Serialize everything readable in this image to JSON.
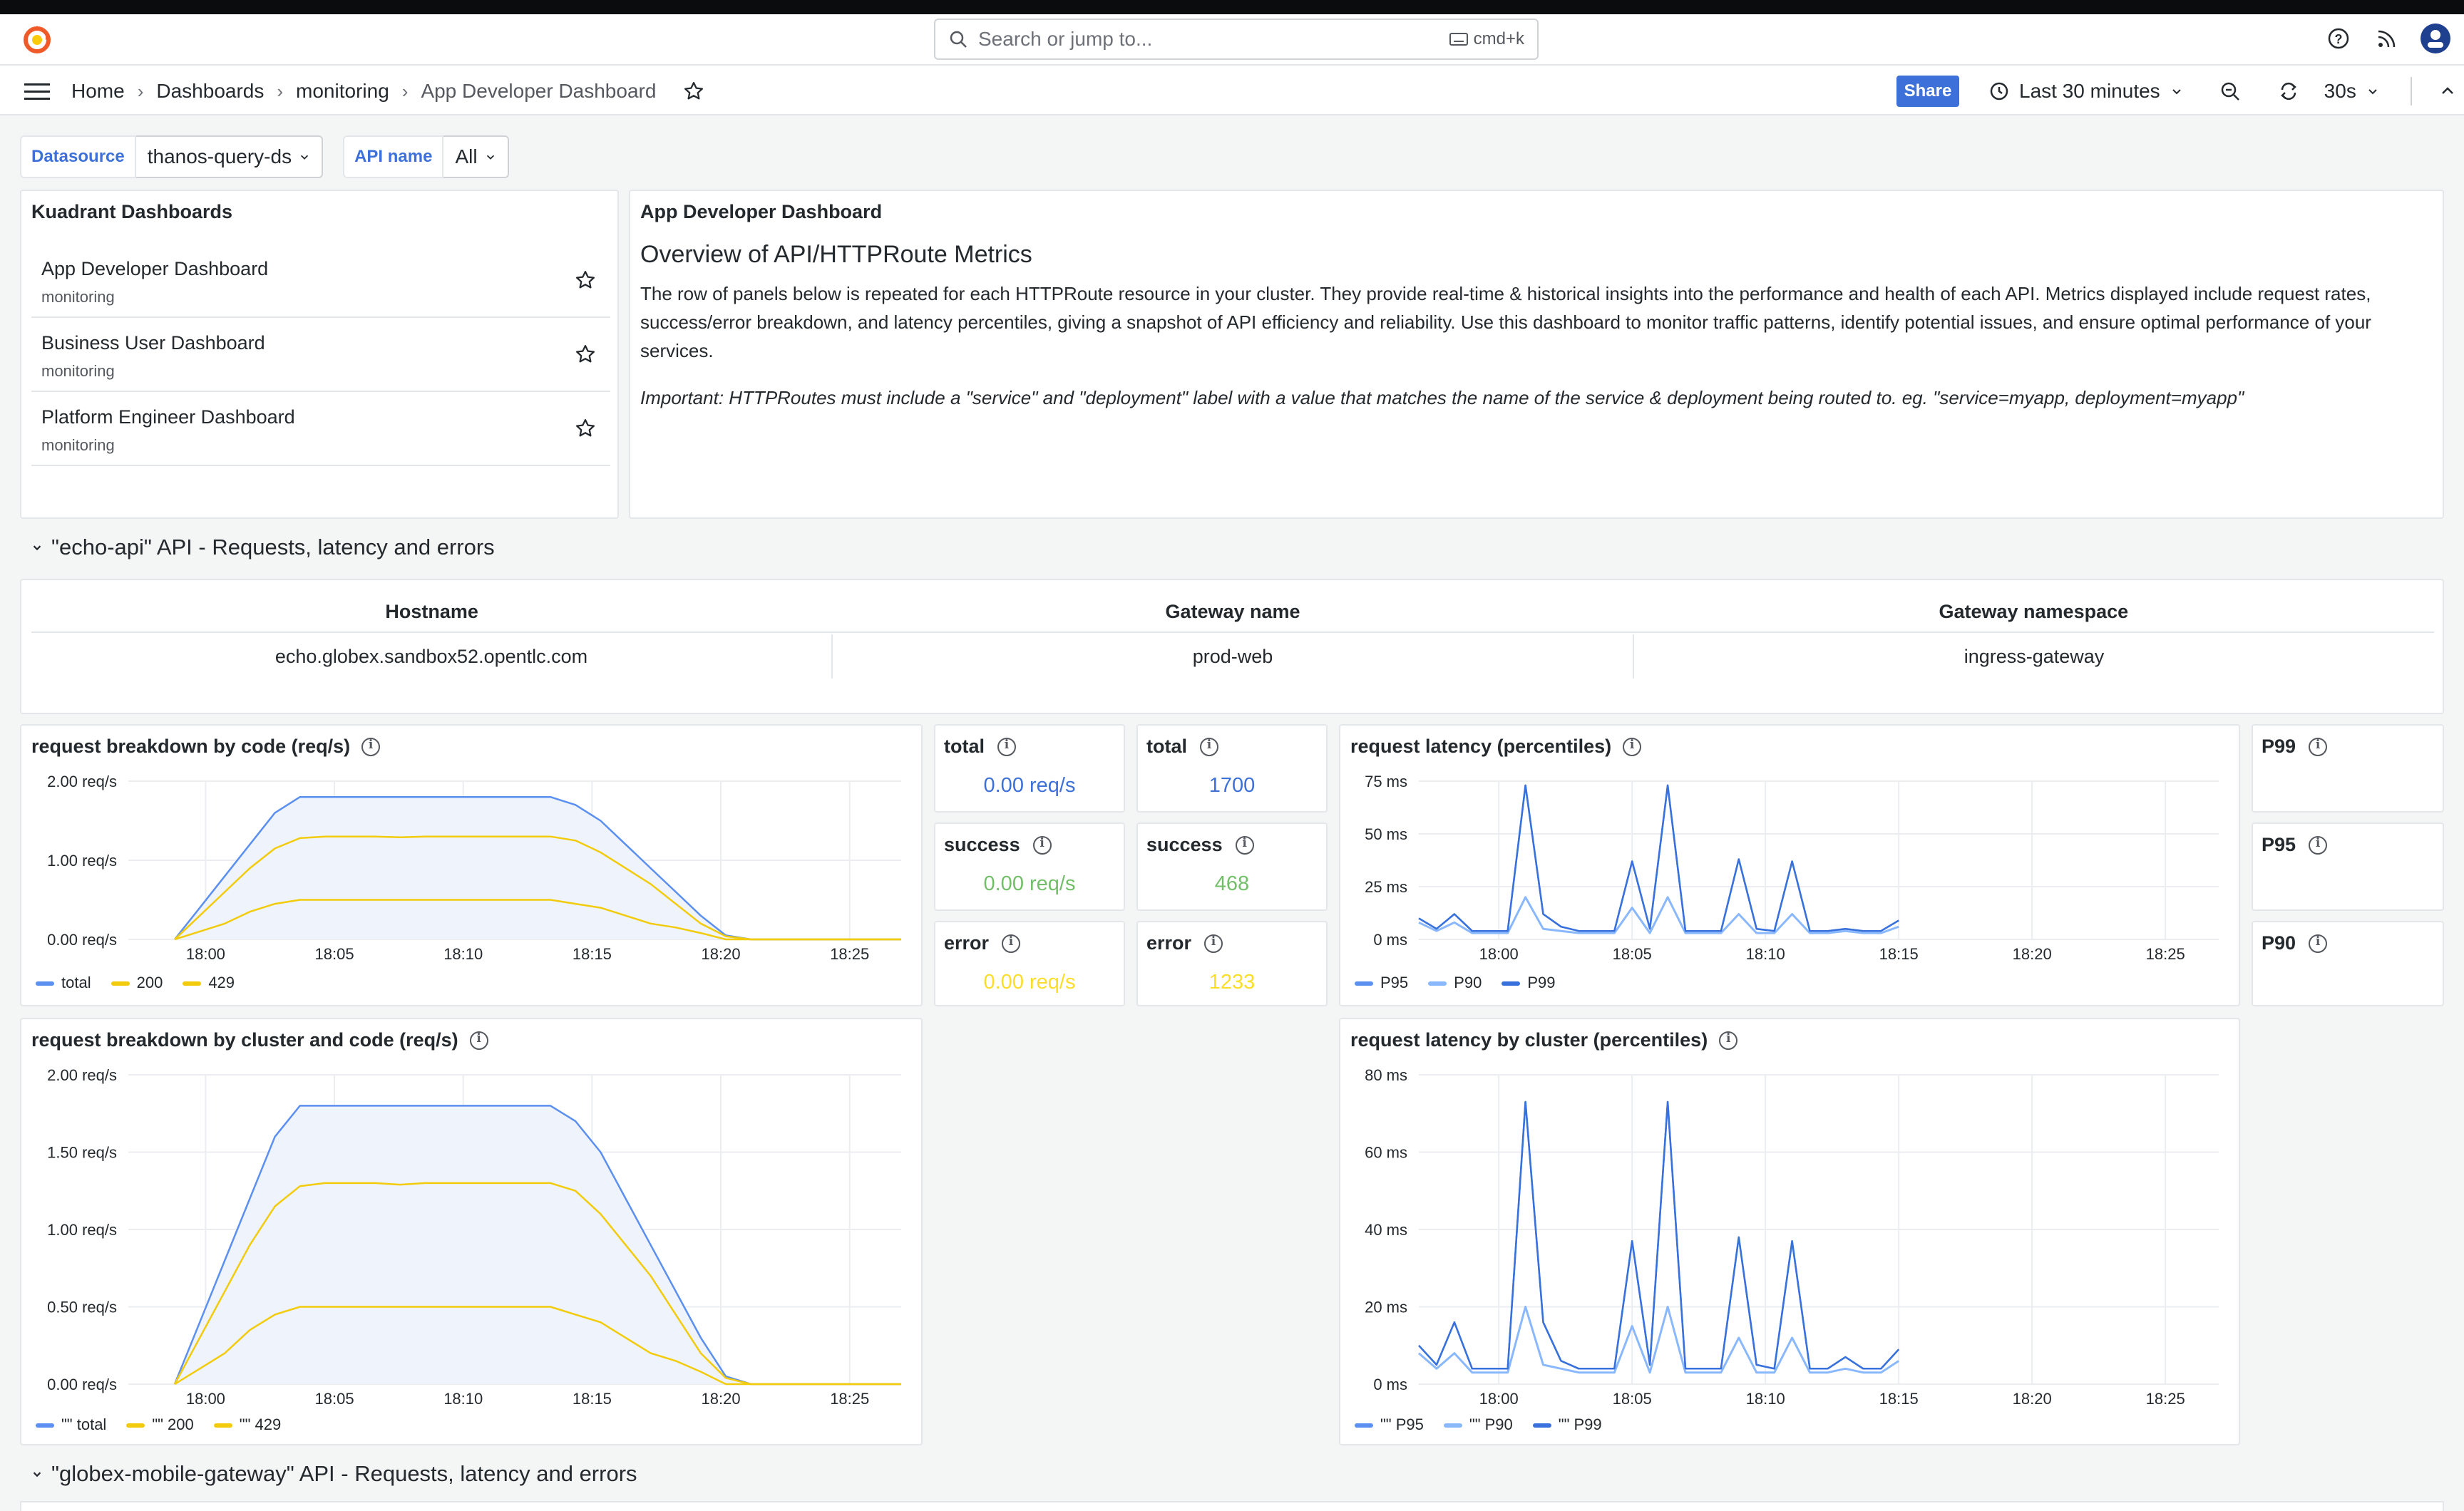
{
  "topbar": {
    "search_placeholder": "Search or jump to...",
    "search_shortcut": "cmd+k"
  },
  "breadcrumb": {
    "items": [
      "Home",
      "Dashboards",
      "monitoring"
    ],
    "current": "App Developer Dashboard"
  },
  "toolbar": {
    "share_label": "Share",
    "time_range": "Last 30 minutes",
    "refresh_interval": "30s"
  },
  "variables": [
    {
      "label": "Datasource",
      "value": "thanos-query-ds"
    },
    {
      "label": "API name",
      "value": "All"
    }
  ],
  "dashlist": {
    "title": "Kuadrant Dashboards",
    "items": [
      {
        "title": "App Developer Dashboard",
        "folder": "monitoring"
      },
      {
        "title": "Business User Dashboard",
        "folder": "monitoring"
      },
      {
        "title": "Platform Engineer Dashboard",
        "folder": "monitoring"
      }
    ]
  },
  "textpanel": {
    "title": "App Developer Dashboard",
    "heading": "Overview of API/HTTPRoute Metrics",
    "body": "The row of panels below is repeated for each HTTPRoute resource in your cluster. They provide real-time & historical insights into the performance and health of each API. Metrics displayed include request rates, success/error breakdown, and latency percentiles, giving a snapshot of API efficiency and reliability. Use this dashboard to monitor traffic patterns, identify potential issues, and ensure optimal performance of your services.",
    "note": "Important: HTTPRoutes must include a \"service\" and \"deployment\" label with a value that matches the name of the service & deployment being routed to. eg. \"service=myapp, deployment=myapp\""
  },
  "rows": [
    {
      "title": "\"echo-api\" API - Requests, latency and errors"
    },
    {
      "title": "\"globex-mobile-gateway\" API - Requests, latency and errors"
    }
  ],
  "infotable": {
    "headers": [
      "Hostname",
      "Gateway name",
      "Gateway namespace"
    ],
    "values": [
      "echo.globex.sandbox52.opentlc.com",
      "prod-web",
      "ingress-gateway"
    ]
  },
  "stats_rate": [
    {
      "label": "total",
      "value": "0.00 req/s",
      "color": "#3d71d9"
    },
    {
      "label": "success",
      "value": "0.00 req/s",
      "color": "#73bf69"
    },
    {
      "label": "error",
      "value": "0.00 req/s",
      "color": "#fade2a"
    }
  ],
  "stats_count": [
    {
      "label": "total",
      "value": "1700",
      "color": "#3d71d9"
    },
    {
      "label": "success",
      "value": "468",
      "color": "#73bf69"
    },
    {
      "label": "error",
      "value": "1233",
      "color": "#fade2a"
    }
  ],
  "pstats": [
    "P99",
    "P95",
    "P90"
  ],
  "colors": {
    "blue": "#5b8ff0",
    "yellow": "#f2cc0c",
    "lightblue": "#8ab8ff",
    "darkblue": "#3871dc"
  },
  "chart_data": [
    {
      "type": "line",
      "title": "request breakdown by code (req/s)",
      "x_ticks": [
        "18:00",
        "18:05",
        "18:10",
        "18:15",
        "18:20",
        "18:25"
      ],
      "y_ticks": [
        "0.00 req/s",
        "1.00 req/s",
        "2.00 req/s"
      ],
      "ylim": [
        0,
        2
      ],
      "series": [
        {
          "name": "total",
          "values": [
            0,
            0.4,
            0.8,
            1.2,
            1.6,
            1.8,
            1.8,
            1.8,
            1.8,
            1.8,
            1.8,
            1.8,
            1.8,
            1.8,
            1.8,
            1.8,
            1.7,
            1.5,
            1.2,
            0.9,
            0.6,
            0.3,
            0.05,
            0,
            0,
            0,
            0,
            0,
            0,
            0
          ]
        },
        {
          "name": "200",
          "values": [
            0,
            0.1,
            0.2,
            0.35,
            0.45,
            0.5,
            0.5,
            0.5,
            0.5,
            0.5,
            0.5,
            0.5,
            0.5,
            0.5,
            0.5,
            0.5,
            0.45,
            0.4,
            0.3,
            0.2,
            0.15,
            0.08,
            0,
            0,
            0,
            0,
            0,
            0,
            0,
            0
          ]
        },
        {
          "name": "429",
          "values": [
            0,
            0.3,
            0.6,
            0.9,
            1.15,
            1.28,
            1.3,
            1.3,
            1.3,
            1.29,
            1.3,
            1.3,
            1.3,
            1.3,
            1.3,
            1.3,
            1.25,
            1.1,
            0.9,
            0.7,
            0.45,
            0.2,
            0.04,
            0,
            0,
            0,
            0,
            0,
            0,
            0
          ]
        }
      ]
    },
    {
      "type": "line",
      "title": "request breakdown by cluster and code (req/s)",
      "x_ticks": [
        "18:00",
        "18:05",
        "18:10",
        "18:15",
        "18:20",
        "18:25"
      ],
      "y_ticks": [
        "0.00 req/s",
        "0.50 req/s",
        "1.00 req/s",
        "1.50 req/s",
        "2.00 req/s"
      ],
      "ylim": [
        0,
        2
      ],
      "series": [
        {
          "name": "\"\" total",
          "values": [
            0,
            0.4,
            0.8,
            1.2,
            1.6,
            1.8,
            1.8,
            1.8,
            1.8,
            1.8,
            1.8,
            1.8,
            1.8,
            1.8,
            1.8,
            1.8,
            1.7,
            1.5,
            1.2,
            0.9,
            0.6,
            0.3,
            0.05,
            0,
            0,
            0,
            0,
            0,
            0,
            0
          ]
        },
        {
          "name": "\"\" 200",
          "values": [
            0,
            0.1,
            0.2,
            0.35,
            0.45,
            0.5,
            0.5,
            0.5,
            0.5,
            0.5,
            0.5,
            0.5,
            0.5,
            0.5,
            0.5,
            0.5,
            0.45,
            0.4,
            0.3,
            0.2,
            0.15,
            0.08,
            0,
            0,
            0,
            0,
            0,
            0,
            0,
            0
          ]
        },
        {
          "name": "\"\" 429",
          "values": [
            0,
            0.3,
            0.6,
            0.9,
            1.15,
            1.28,
            1.3,
            1.3,
            1.3,
            1.29,
            1.3,
            1.3,
            1.3,
            1.3,
            1.3,
            1.3,
            1.25,
            1.1,
            0.9,
            0.7,
            0.45,
            0.2,
            0.04,
            0,
            0,
            0,
            0,
            0,
            0,
            0
          ]
        }
      ]
    },
    {
      "type": "line",
      "title": "request latency (percentiles)",
      "x_ticks": [
        "18:00",
        "18:05",
        "18:10",
        "18:15",
        "18:20",
        "18:25"
      ],
      "y_ticks": [
        "0 ms",
        "25 ms",
        "50 ms",
        "75 ms"
      ],
      "ylim": [
        0,
        75
      ],
      "series": [
        {
          "name": "P95",
          "values": [
            10,
            5,
            12,
            4,
            4,
            4,
            73,
            12,
            6,
            4,
            4,
            4,
            37,
            5,
            73,
            4,
            4,
            4,
            38,
            5,
            4,
            37,
            4,
            4,
            5,
            4,
            4,
            9
          ]
        },
        {
          "name": "P90",
          "values": [
            8,
            4,
            8,
            3,
            3,
            3,
            20,
            5,
            4,
            3,
            3,
            3,
            15,
            3,
            20,
            3,
            3,
            3,
            12,
            3,
            3,
            12,
            3,
            3,
            4,
            3,
            3,
            6
          ]
        },
        {
          "name": "P99",
          "values": [
            10,
            5,
            12,
            4,
            4,
            4,
            73,
            12,
            6,
            4,
            4,
            4,
            37,
            5,
            73,
            4,
            4,
            4,
            38,
            5,
            4,
            37,
            4,
            4,
            5,
            4,
            4,
            9
          ]
        }
      ]
    },
    {
      "type": "line",
      "title": "request latency by cluster (percentiles)",
      "x_ticks": [
        "18:00",
        "18:05",
        "18:10",
        "18:15",
        "18:20",
        "18:25"
      ],
      "y_ticks": [
        "0 ms",
        "20 ms",
        "40 ms",
        "60 ms",
        "80 ms"
      ],
      "ylim": [
        0,
        80
      ],
      "series": [
        {
          "name": "\"\" P95",
          "values": [
            10,
            5,
            16,
            4,
            4,
            4,
            73,
            16,
            6,
            4,
            4,
            4,
            37,
            5,
            73,
            4,
            4,
            4,
            38,
            5,
            4,
            37,
            4,
            4,
            7,
            4,
            4,
            9
          ]
        },
        {
          "name": "\"\" P90",
          "values": [
            8,
            4,
            8,
            3,
            3,
            3,
            20,
            5,
            4,
            3,
            3,
            3,
            15,
            3,
            20,
            3,
            3,
            3,
            12,
            3,
            3,
            12,
            3,
            3,
            4,
            3,
            3,
            6
          ]
        },
        {
          "name": "\"\" P99",
          "values": [
            10,
            5,
            16,
            4,
            4,
            4,
            73,
            16,
            6,
            4,
            4,
            4,
            37,
            5,
            73,
            4,
            4,
            4,
            38,
            5,
            4,
            37,
            4,
            4,
            7,
            4,
            4,
            9
          ]
        }
      ]
    }
  ]
}
